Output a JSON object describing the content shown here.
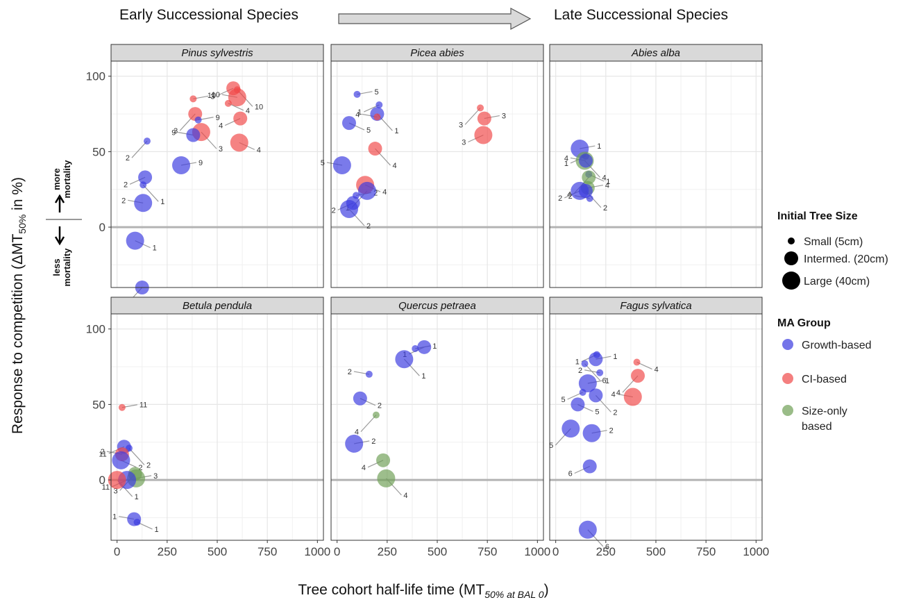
{
  "header": {
    "early": "Early Successional Species",
    "late": "Late Successional Species"
  },
  "colors": {
    "growth": "#3b3be0",
    "ci": "#f04848",
    "size": "#6f9f56"
  },
  "chart_data": {
    "type": "scatter",
    "xlabel": "Tree cohort half-life time (MT",
    "xlabel_sub": "50% at BAL 0",
    "xlabel_end": ")",
    "ylabel_pre": "Response to competition (ΔMT",
    "ylabel_sub": "50%",
    "ylabel_post": " in %)",
    "xlim": [
      -30,
      1030
    ],
    "ylim": [
      -40,
      110
    ],
    "xticks": [
      0,
      250,
      500,
      750,
      1000
    ],
    "yticks": [
      0,
      50,
      100
    ],
    "annotation_up": [
      "more",
      "mortality"
    ],
    "annotation_down": [
      "less",
      "mortality"
    ],
    "legend": {
      "size_title": "Initial Tree Size",
      "sizes": [
        {
          "label": "Small (5cm)",
          "size": "small"
        },
        {
          "label": "Intermed. (20cm)",
          "size": "mid"
        },
        {
          "label": "Large (40cm)",
          "size": "large"
        }
      ],
      "group_title": "MA Group",
      "groups": [
        {
          "label": [
            "Growth-based"
          ],
          "group": "growth"
        },
        {
          "label": [
            "CI-based"
          ],
          "group": "ci"
        },
        {
          "label": [
            "Size-only",
            "based"
          ],
          "group": "size"
        }
      ]
    },
    "panels": [
      {
        "title": "Pinus sylvestris",
        "points": [
          {
            "x": 380,
            "y": 85,
            "s": "small",
            "g": "ci",
            "lbl": "3"
          },
          {
            "x": 580,
            "y": 92,
            "s": "mid",
            "g": "ci",
            "lbl": "10"
          },
          {
            "x": 600,
            "y": 91,
            "s": "small",
            "g": "ci",
            "lbl": "10"
          },
          {
            "x": 600,
            "y": 86,
            "s": "large",
            "g": "ci",
            "lbl": "10"
          },
          {
            "x": 555,
            "y": 82,
            "s": "small",
            "g": "ci",
            "lbl": "4"
          },
          {
            "x": 390,
            "y": 75,
            "s": "mid",
            "g": "ci",
            "lbl": "3"
          },
          {
            "x": 405,
            "y": 71,
            "s": "small",
            "g": "growth",
            "lbl": "9"
          },
          {
            "x": 615,
            "y": 72,
            "s": "mid",
            "g": "ci",
            "lbl": "4"
          },
          {
            "x": 420,
            "y": 63,
            "s": "large",
            "g": "ci",
            "lbl": "3"
          },
          {
            "x": 380,
            "y": 61,
            "s": "mid",
            "g": "growth",
            "lbl": "9"
          },
          {
            "x": 610,
            "y": 56,
            "s": "large",
            "g": "ci",
            "lbl": "4"
          },
          {
            "x": 150,
            "y": 57,
            "s": "small",
            "g": "growth",
            "lbl": "2"
          },
          {
            "x": 320,
            "y": 41,
            "s": "large",
            "g": "growth",
            "lbl": "9"
          },
          {
            "x": 140,
            "y": 33,
            "s": "mid",
            "g": "growth",
            "lbl": "2"
          },
          {
            "x": 130,
            "y": 28,
            "s": "small",
            "g": "growth",
            "lbl": "1"
          },
          {
            "x": 130,
            "y": 16,
            "s": "large",
            "g": "growth",
            "lbl": "2"
          },
          {
            "x": 90,
            "y": -9,
            "s": "large",
            "g": "growth",
            "lbl": "1"
          },
          {
            "x": 125,
            "y": -40,
            "s": "mid",
            "g": "growth",
            "lbl": "1"
          }
        ]
      },
      {
        "title": "Picea abies",
        "points": [
          {
            "x": 100,
            "y": 88,
            "s": "small",
            "g": "growth",
            "lbl": "5"
          },
          {
            "x": 210,
            "y": 81,
            "s": "small",
            "g": "growth",
            "lbl": "1"
          },
          {
            "x": 200,
            "y": 75,
            "s": "mid",
            "g": "growth",
            "lbl": "1"
          },
          {
            "x": 200,
            "y": 73,
            "s": "small",
            "g": "ci",
            "lbl": "4"
          },
          {
            "x": 60,
            "y": 69,
            "s": "mid",
            "g": "growth",
            "lbl": "5"
          },
          {
            "x": 715,
            "y": 79,
            "s": "small",
            "g": "ci",
            "lbl": "3"
          },
          {
            "x": 735,
            "y": 72,
            "s": "mid",
            "g": "ci",
            "lbl": "3"
          },
          {
            "x": 730,
            "y": 61,
            "s": "large",
            "g": "ci",
            "lbl": "3"
          },
          {
            "x": 190,
            "y": 52,
            "s": "mid",
            "g": "ci",
            "lbl": "4"
          },
          {
            "x": 25,
            "y": 41,
            "s": "large",
            "g": "growth",
            "lbl": "5"
          },
          {
            "x": 140,
            "y": 28,
            "s": "large",
            "g": "ci",
            "lbl": "4"
          },
          {
            "x": 150,
            "y": 24,
            "s": "large",
            "g": "growth",
            "lbl": "1"
          },
          {
            "x": 95,
            "y": 21,
            "s": "small",
            "g": "growth",
            "lbl": "2"
          },
          {
            "x": 80,
            "y": 16,
            "s": "mid",
            "g": "growth",
            "lbl": "2"
          },
          {
            "x": 60,
            "y": 12,
            "s": "large",
            "g": "growth",
            "lbl": "2"
          }
        ]
      },
      {
        "title": "Abies alba",
        "points": [
          {
            "x": 120,
            "y": 52,
            "s": "large",
            "g": "growth",
            "lbl": "1"
          },
          {
            "x": 150,
            "y": 47,
            "s": "small",
            "g": "growth",
            "lbl": "1"
          },
          {
            "x": 145,
            "y": 44,
            "s": "large",
            "g": "size",
            "lbl": "4"
          },
          {
            "x": 150,
            "y": 44,
            "s": "mid",
            "g": "growth",
            "lbl": "4"
          },
          {
            "x": 165,
            "y": 35,
            "s": "small",
            "g": "growth",
            "lbl": "1"
          },
          {
            "x": 165,
            "y": 33,
            "s": "mid",
            "g": "size",
            "lbl": "4"
          },
          {
            "x": 160,
            "y": 26,
            "s": "mid",
            "g": "size",
            "lbl": "4"
          },
          {
            "x": 120,
            "y": 24,
            "s": "large",
            "g": "growth",
            "lbl": "2"
          },
          {
            "x": 150,
            "y": 24,
            "s": "mid",
            "g": "growth",
            "lbl": "2"
          },
          {
            "x": 170,
            "y": 19,
            "s": "small",
            "g": "growth",
            "lbl": "2"
          }
        ]
      },
      {
        "title": "Betula pendula",
        "points": [
          {
            "x": 25,
            "y": 48,
            "s": "small",
            "g": "ci",
            "lbl": "11"
          },
          {
            "x": 35,
            "y": 22,
            "s": "mid",
            "g": "growth",
            "lbl": "11"
          },
          {
            "x": 60,
            "y": 21,
            "s": "small",
            "g": "growth",
            "lbl": "2"
          },
          {
            "x": 25,
            "y": 17,
            "s": "mid",
            "g": "ci",
            "lbl": "2"
          },
          {
            "x": 20,
            "y": 13,
            "s": "large",
            "g": "growth",
            "lbl": "2"
          },
          {
            "x": 90,
            "y": 4,
            "s": "mid",
            "g": "size",
            "lbl": "3"
          },
          {
            "x": 95,
            "y": 1,
            "s": "large",
            "g": "size",
            "lbl": "3"
          },
          {
            "x": 50,
            "y": 0,
            "s": "large",
            "g": "growth",
            "lbl": "11"
          },
          {
            "x": 0,
            "y": 0,
            "s": "large",
            "g": "ci",
            "lbl": "1"
          },
          {
            "x": 85,
            "y": -26,
            "s": "mid",
            "g": "growth",
            "lbl": "1"
          },
          {
            "x": 100,
            "y": -28,
            "s": "small",
            "g": "growth",
            "lbl": "1"
          }
        ]
      },
      {
        "title": "Quercus petraea",
        "points": [
          {
            "x": 390,
            "y": 87,
            "s": "small",
            "g": "growth",
            "lbl": "1"
          },
          {
            "x": 435,
            "y": 88,
            "s": "mid",
            "g": "growth",
            "lbl": "1"
          },
          {
            "x": 335,
            "y": 80,
            "s": "large",
            "g": "growth",
            "lbl": "1"
          },
          {
            "x": 160,
            "y": 70,
            "s": "small",
            "g": "growth",
            "lbl": "2"
          },
          {
            "x": 115,
            "y": 54,
            "s": "mid",
            "g": "growth",
            "lbl": "2"
          },
          {
            "x": 195,
            "y": 43,
            "s": "small",
            "g": "size",
            "lbl": "4"
          },
          {
            "x": 85,
            "y": 24,
            "s": "large",
            "g": "growth",
            "lbl": "2"
          },
          {
            "x": 230,
            "y": 13,
            "s": "mid",
            "g": "size",
            "lbl": "4"
          },
          {
            "x": 245,
            "y": 1,
            "s": "large",
            "g": "size",
            "lbl": "4"
          }
        ]
      },
      {
        "title": "Fagus sylvatica",
        "points": [
          {
            "x": 200,
            "y": 80,
            "s": "mid",
            "g": "growth",
            "lbl": "1"
          },
          {
            "x": 205,
            "y": 83,
            "s": "small",
            "g": "growth",
            "lbl": "1"
          },
          {
            "x": 145,
            "y": 77,
            "s": "small",
            "g": "growth",
            "lbl": "6"
          },
          {
            "x": 220,
            "y": 71,
            "s": "small",
            "g": "growth",
            "lbl": "2"
          },
          {
            "x": 405,
            "y": 78,
            "s": "small",
            "g": "ci",
            "lbl": "4"
          },
          {
            "x": 410,
            "y": 69,
            "s": "mid",
            "g": "ci",
            "lbl": "4"
          },
          {
            "x": 160,
            "y": 64,
            "s": "large",
            "g": "growth",
            "lbl": "1"
          },
          {
            "x": 135,
            "y": 58,
            "s": "small",
            "g": "growth",
            "lbl": "5"
          },
          {
            "x": 200,
            "y": 56,
            "s": "mid",
            "g": "growth",
            "lbl": "2"
          },
          {
            "x": 385,
            "y": 55,
            "s": "large",
            "g": "ci",
            "lbl": "4"
          },
          {
            "x": 110,
            "y": 50,
            "s": "mid",
            "g": "growth",
            "lbl": "5"
          },
          {
            "x": 75,
            "y": 34,
            "s": "large",
            "g": "growth",
            "lbl": "5"
          },
          {
            "x": 180,
            "y": 31,
            "s": "large",
            "g": "growth",
            "lbl": "2"
          },
          {
            "x": 170,
            "y": 9,
            "s": "mid",
            "g": "growth",
            "lbl": "6"
          },
          {
            "x": 160,
            "y": -33,
            "s": "large",
            "g": "growth",
            "lbl": "6"
          }
        ]
      }
    ]
  }
}
